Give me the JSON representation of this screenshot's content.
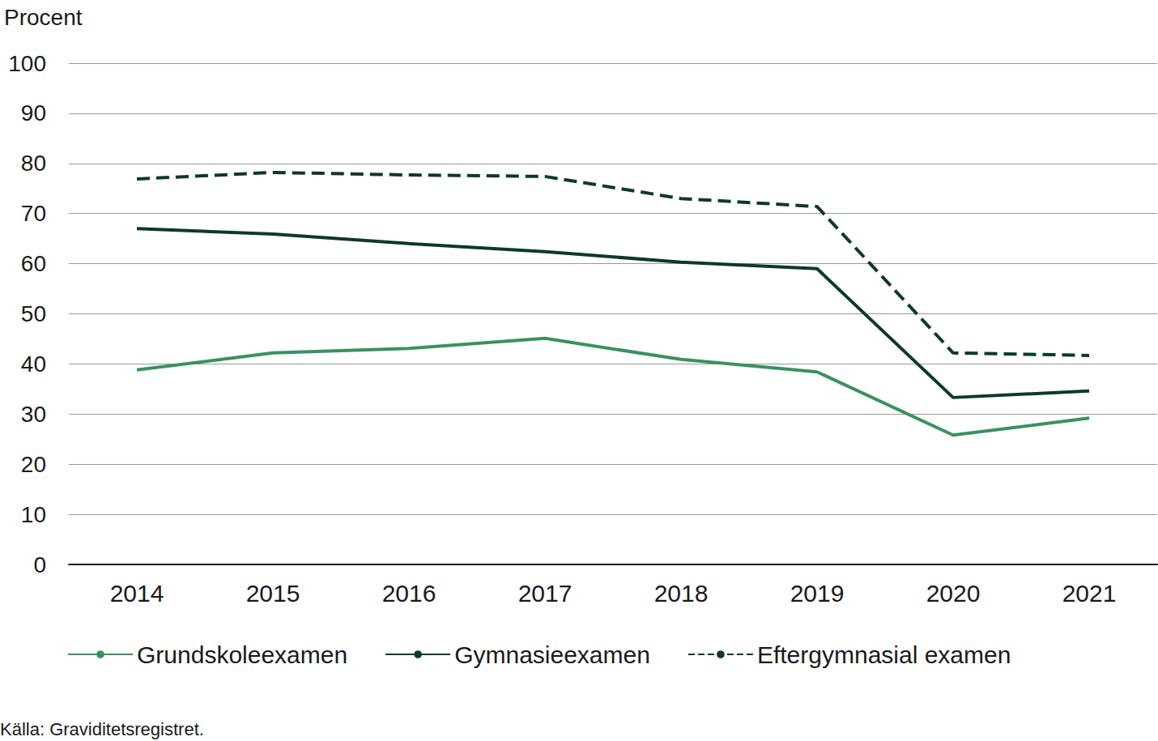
{
  "chart_data": {
    "type": "line",
    "y_label": "Procent",
    "annotations": [
      "Källa: Graviditetsregistret."
    ],
    "categories": [
      "2014",
      "2015",
      "2016",
      "2017",
      "2018",
      "2019",
      "2020",
      "2021"
    ],
    "series": [
      {
        "name": "Grundskoleexamen",
        "color": "#3a9160",
        "line_style": "solid",
        "values": [
          38.8,
          42.2,
          43.1,
          45.1,
          40.9,
          38.4,
          25.8,
          29.2
        ]
      },
      {
        "name": "Gymnasieexamen",
        "color": "#0c3a27",
        "line_style": "solid",
        "values": [
          67.0,
          65.9,
          64.0,
          62.4,
          60.3,
          59.0,
          33.3,
          34.6
        ]
      },
      {
        "name": "Eftergymnasial examen",
        "color": "#0c3a27",
        "line_style": "dashed",
        "values": [
          76.9,
          78.2,
          77.7,
          77.4,
          73.0,
          71.4,
          42.2,
          41.7
        ]
      }
    ],
    "ylim": [
      0,
      100
    ],
    "yticks": [
      0,
      10,
      20,
      30,
      40,
      50,
      60,
      70,
      80,
      90,
      100
    ],
    "grid": true,
    "legend": "bottom"
  }
}
